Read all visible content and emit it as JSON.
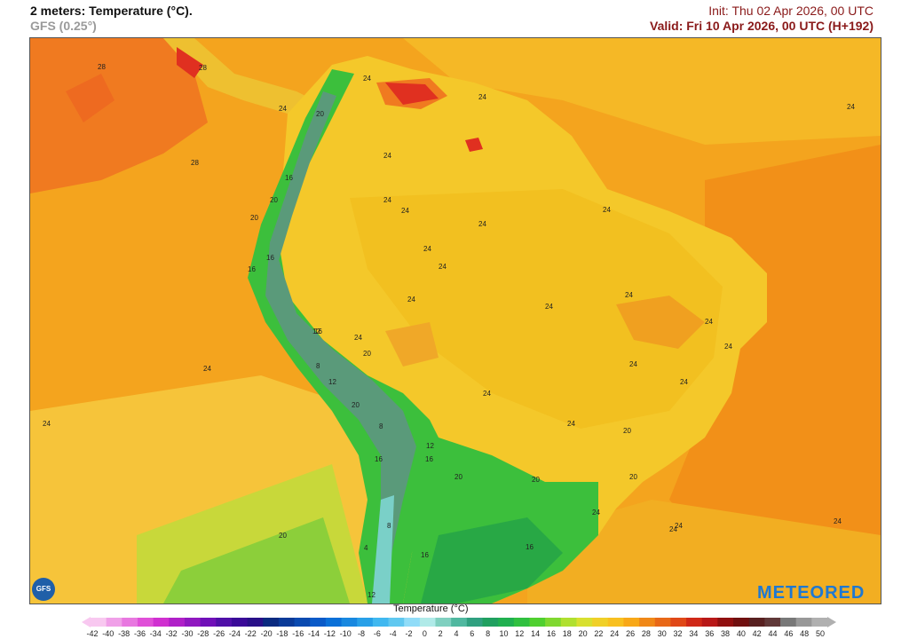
{
  "header": {
    "title": "2 meters: Temperature (°C).",
    "model": "GFS (0.25°)",
    "init": "Init: Thu 02 Apr 2026, 00 UTC",
    "valid": "Valid: Fri 10 Apr 2026, 00 UTC (H+192)"
  },
  "map": {
    "labels": [
      "28",
      "28",
      "28",
      "24",
      "24",
      "24",
      "24",
      "24",
      "24",
      "24",
      "24",
      "24",
      "24",
      "24",
      "24",
      "24",
      "24",
      "24",
      "24",
      "24",
      "24",
      "24",
      "24",
      "24",
      "24",
      "24",
      "24",
      "24",
      "24",
      "24",
      "20",
      "20",
      "20",
      "20",
      "20",
      "20",
      "20",
      "20",
      "20",
      "20",
      "16",
      "16",
      "16",
      "16",
      "16",
      "16",
      "16",
      "16",
      "12",
      "12",
      "12",
      "12",
      "8",
      "8",
      "8",
      "4"
    ],
    "colors": {
      "ocean_orange": "#f39a1a",
      "warm_orange": "#f07a20",
      "hot_red": "#e03020",
      "yellow": "#f2c81e",
      "pale_yellow": "#f6dc3a",
      "green": "#3cbf3c",
      "dark_green": "#2a8a45",
      "teal": "#5a9a7a"
    }
  },
  "legend": {
    "title": "Temperature (°C)",
    "ticks": [
      "-42",
      "-40",
      "-38",
      "-36",
      "-34",
      "-32",
      "-30",
      "-28",
      "-26",
      "-24",
      "-22",
      "-20",
      "-18",
      "-16",
      "-14",
      "-12",
      "-10",
      "-8",
      "-6",
      "-4",
      "-2",
      "0",
      "2",
      "4",
      "6",
      "8",
      "10",
      "12",
      "14",
      "16",
      "18",
      "20",
      "22",
      "24",
      "26",
      "28",
      "30",
      "32",
      "34",
      "36",
      "38",
      "40",
      "42",
      "44",
      "46",
      "48",
      "50"
    ],
    "colors": [
      "#f8c8f0",
      "#f0a0e8",
      "#e878e0",
      "#e050d8",
      "#d030d0",
      "#b020c8",
      "#9018c0",
      "#7010b8",
      "#5010a8",
      "#3a0a98",
      "#281088",
      "#0a2a80",
      "#0a3a98",
      "#0a4ab0",
      "#0a5ac8",
      "#0a70d8",
      "#1888e0",
      "#28a0e8",
      "#40b8f0",
      "#60c8f0",
      "#90dcf8",
      "#b0eae8",
      "#80d0c0",
      "#50b8a0",
      "#30a080",
      "#20a060",
      "#20b050",
      "#30c040",
      "#50d030",
      "#80d830",
      "#b0e030",
      "#d8e030",
      "#f0d028",
      "#f8c020",
      "#f8a818",
      "#f08818",
      "#e86818",
      "#e04818",
      "#d02818",
      "#b81818",
      "#901010",
      "#701010",
      "#582020",
      "#603838",
      "#787878",
      "#989898",
      "#b0b0b0"
    ]
  },
  "logos": {
    "gfs": "GFS",
    "meteored": "METEORED"
  }
}
